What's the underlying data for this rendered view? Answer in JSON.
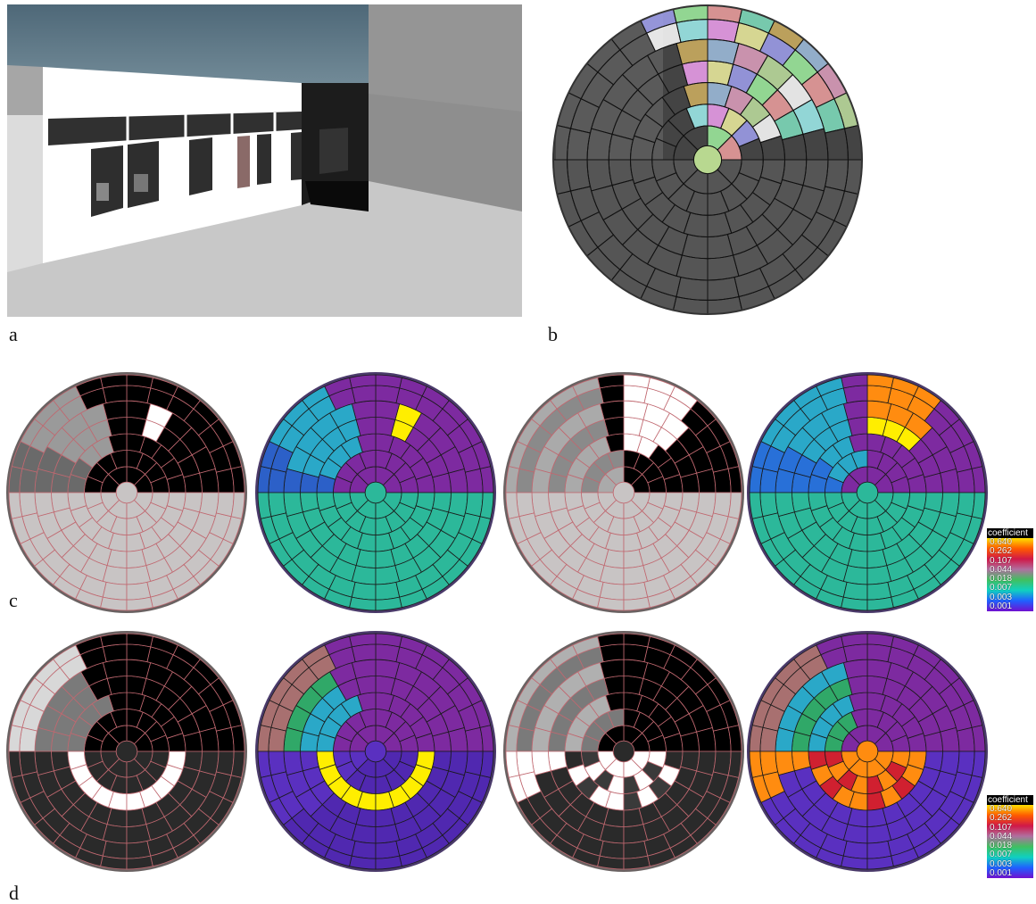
{
  "labels": {
    "a": "a",
    "b": "b",
    "c": "c",
    "d": "d"
  },
  "legend": {
    "title": "coefficient",
    "values": [
      "0.640",
      "0.262",
      "0.107",
      "0.044",
      "0.018",
      "0.007",
      "0.003",
      "0.001"
    ],
    "colors": [
      "#ffe000",
      "#ff5a00",
      "#d01848",
      "#b070a0",
      "#40c060",
      "#10d0c0",
      "#2060ff",
      "#7010d0"
    ]
  },
  "colors": {
    "purple": "#7d2aa0",
    "teal": "#2cb89a",
    "cyan": "#2aa8c8",
    "yellow": "#ffee00",
    "orange": "#ff8c10",
    "black": "#000000",
    "light_gray": "#c8c4c4",
    "dark_gray": "#2a2a2a",
    "grid_red": "#c06870"
  }
}
